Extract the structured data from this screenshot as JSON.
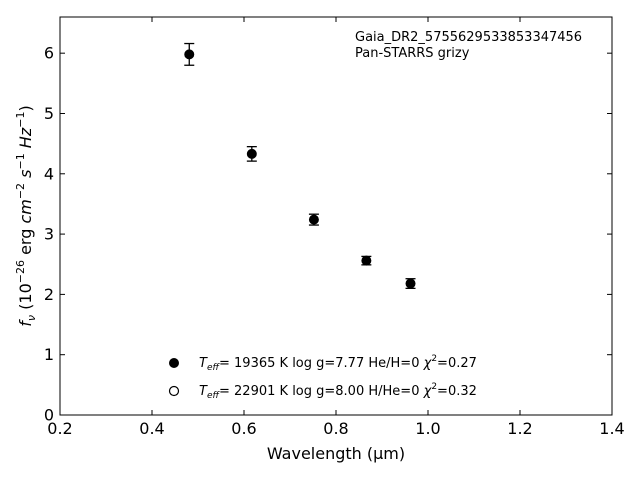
{
  "chart_data": {
    "type": "scatter",
    "xlabel": "Wavelength (μm)",
    "ylabel": "f_ν (10^-26 erg cm^-2 s^-1 Hz^-1)",
    "xlim": [
      0.2,
      1.4
    ],
    "ylim": [
      0,
      6.6
    ],
    "xticks": [
      0.2,
      0.4,
      0.6,
      0.8,
      1.0,
      1.2,
      1.4
    ],
    "xtick_labels": [
      "0.2",
      "0.4",
      "0.6",
      "0.8",
      "1.0",
      "1.2",
      "1.4"
    ],
    "yticks": [
      0,
      1,
      2,
      3,
      4,
      5,
      6
    ],
    "ytick_labels": [
      "0",
      "1",
      "2",
      "3",
      "4",
      "5",
      "6"
    ],
    "grid": false,
    "annotations": [
      "Gaia_DR2_5755629533853347456",
      "Pan-STARRS grizy"
    ],
    "series": [
      {
        "marker": "filled-circle",
        "x": [
          0.481,
          0.617,
          0.752,
          0.866,
          0.962
        ],
        "y": [
          5.98,
          4.33,
          3.24,
          2.56,
          2.18
        ],
        "yerr": [
          0.18,
          0.12,
          0.09,
          0.07,
          0.08
        ]
      }
    ],
    "legend": {
      "placement": "lower-center",
      "entries": [
        {
          "marker": "filled-circle",
          "teff_value": "= 19365 K",
          "logg": "log g=7.77",
          "comp": "He/H=0",
          "chi2_value": "=0.27"
        },
        {
          "marker": "open-circle",
          "teff_value": "= 22901 K",
          "logg": "log g=8.00",
          "comp": "H/He=0",
          "chi2_value": "=0.32"
        }
      ]
    }
  }
}
